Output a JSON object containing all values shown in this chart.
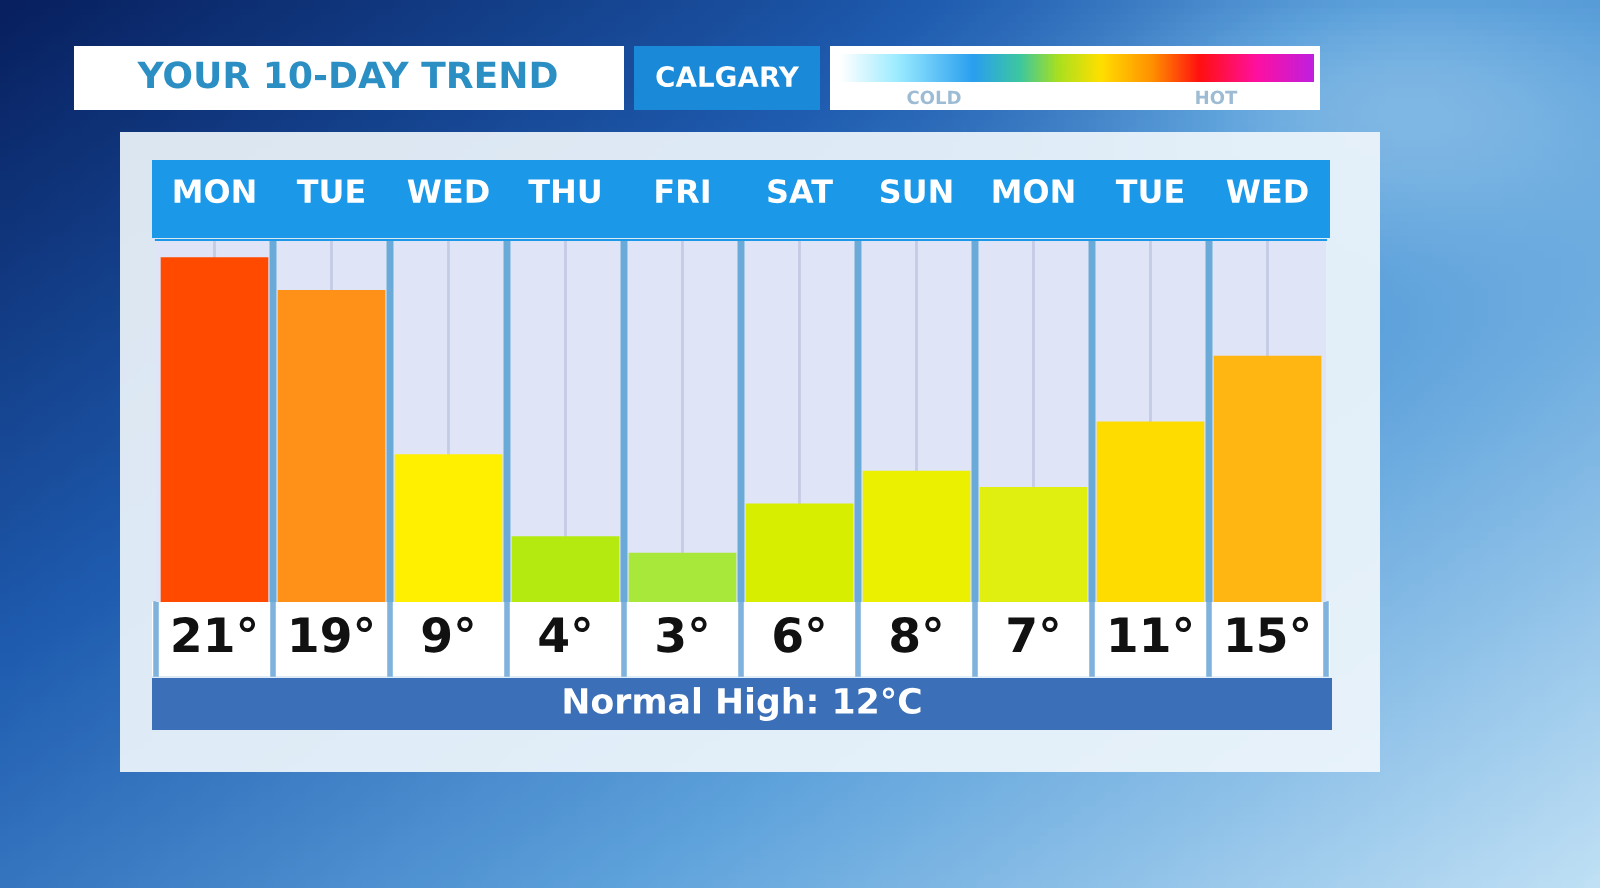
{
  "chart_data": {
    "type": "bar",
    "title": "YOUR 10-DAY TREND",
    "subtitle": "CALGARY",
    "categories": [
      "MON",
      "TUE",
      "WED",
      "THU",
      "FRI",
      "SAT",
      "SUN",
      "MON",
      "TUE",
      "WED"
    ],
    "values": [
      21,
      19,
      9,
      4,
      3,
      6,
      8,
      7,
      11,
      15
    ],
    "colors": [
      "#ff4a00",
      "#ff9018",
      "#fff000",
      "#b4ea10",
      "#a8e83a",
      "#d8ee00",
      "#eaf000",
      "#e0ee10",
      "#ffdc00",
      "#ffb512"
    ],
    "value_labels": [
      "21°",
      "19°",
      "9°",
      "4°",
      "3°",
      "6°",
      "8°",
      "7°",
      "11°",
      "15°"
    ],
    "annotations": [
      "COLD",
      "HOT",
      "Normal High: 12°C"
    ],
    "grid": "x",
    "tick_labels": "x"
  }
}
